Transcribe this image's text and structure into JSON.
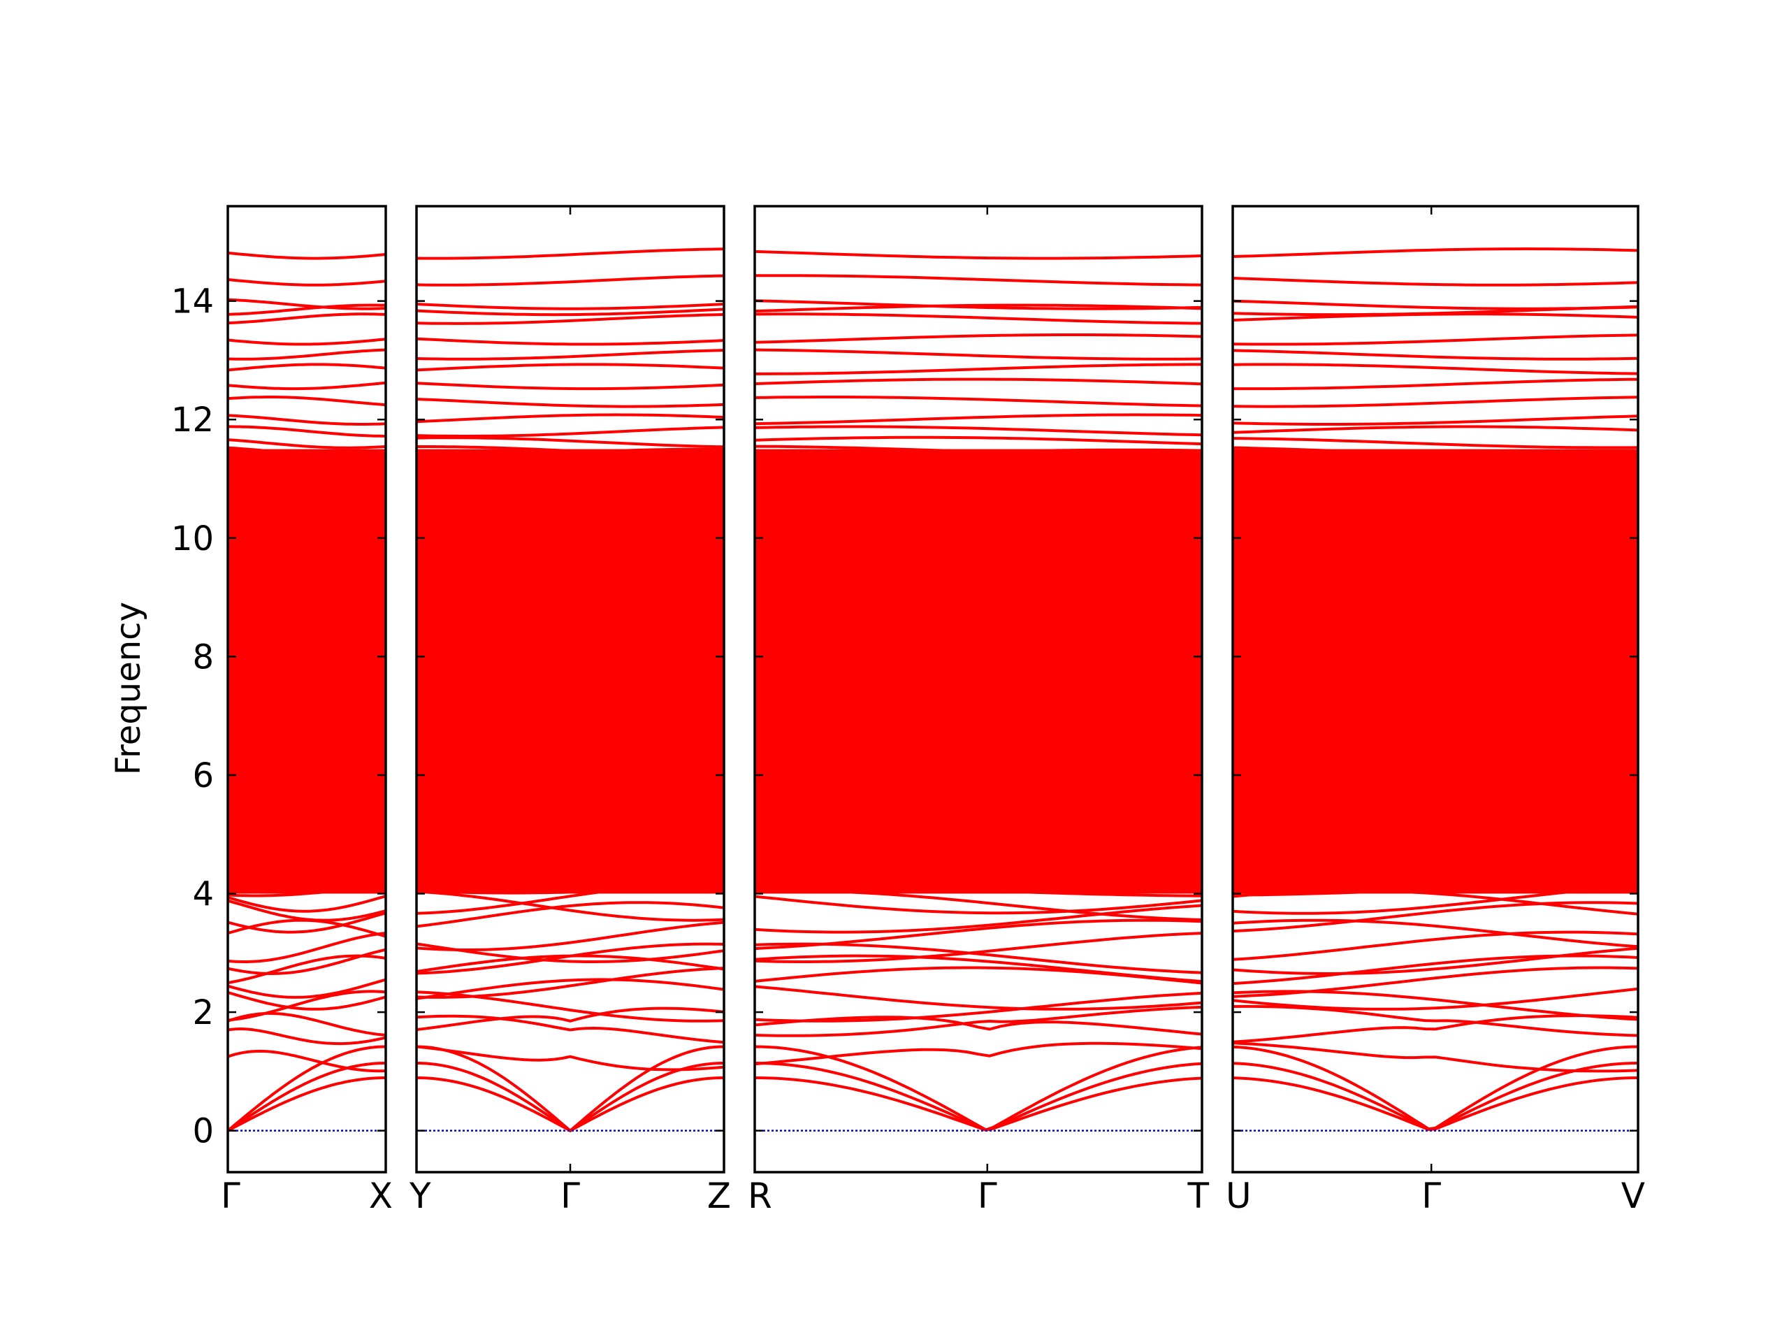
{
  "chart_data": {
    "type": "line",
    "title": "",
    "ylabel": "Frequency",
    "ylim": [
      -0.7,
      15.6
    ],
    "yticks": [
      0,
      2,
      4,
      6,
      8,
      10,
      12,
      14
    ],
    "ytick_labels": [
      "0",
      "2",
      "4",
      "6",
      "8",
      "10",
      "12",
      "14"
    ],
    "grid": false,
    "line_color": "#ff0000",
    "zero_line_color": "#0000cc",
    "panels": [
      {
        "path": [
          "Γ",
          "X"
        ],
        "xtick_labels": [
          "Γ",
          "X"
        ],
        "gamma_at": 0.0
      },
      {
        "path": [
          "Y",
          "Γ",
          "Z"
        ],
        "xtick_labels": [
          "Y",
          "Γ",
          "Z"
        ],
        "gamma_at": 0.5
      },
      {
        "path": [
          "R",
          "Γ",
          "T"
        ],
        "xtick_labels": [
          "R",
          "Γ",
          "T"
        ],
        "gamma_at": 0.52
      },
      {
        "path": [
          "U",
          "Γ",
          "V"
        ],
        "xtick_labels": [
          "U",
          "Γ",
          "V"
        ],
        "gamma_at": 0.49
      }
    ],
    "series": [
      {
        "values_at_gamma": [
          0,
          0,
          0
        ],
        "description": "acoustic branches"
      },
      {
        "values_at_gamma": [
          1.25,
          1.7,
          1.85,
          2.1,
          2.3,
          2.5,
          2.7,
          2.9,
          3.1,
          3.3,
          3.6,
          3.8
        ]
      },
      {
        "values_at_gamma": [
          11.8,
          12.0,
          12.3,
          12.6,
          12.85,
          13.1,
          13.35,
          13.7,
          13.85,
          13.95,
          14.35,
          14.8
        ]
      }
    ],
    "band_fill_range": [
      4.0,
      11.5
    ]
  }
}
